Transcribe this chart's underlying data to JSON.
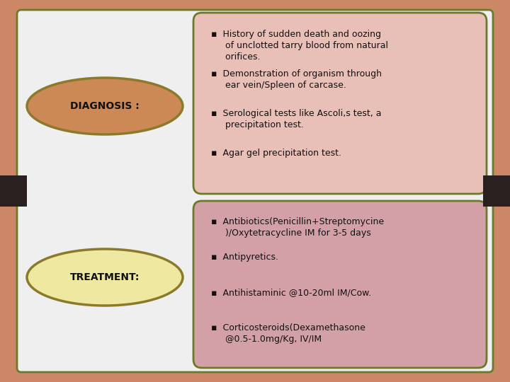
{
  "background_color": "#CC8866",
  "main_bg": "#EFEFEF",
  "panel_border_color": "#6B7A2A",
  "diagnosis_box_bg": "#E8C0B8",
  "treatment_box_bg": "#D4A0A8",
  "diagnosis_ellipse_bg": "#CC8855",
  "treatment_ellipse_bg": "#EEE8A0",
  "diagnosis_ellipse_border": "#8B7A2A",
  "treatment_ellipse_border": "#8B7A2A",
  "separator_color": "#2A2020",
  "diagnosis_label": "DIAGNOSIS :",
  "treatment_label": "TREATMENT:",
  "diagnosis_bullets": [
    "▪  History of sudden death and oozing\n     of unclotted tarry blood from natural\n     orifices.",
    "▪  Demonstration of organism through\n     ear vein/Spleen of carcase.",
    "▪  Serological tests like Ascoli,s test, a\n     precipitation test.",
    "▪  Agar gel precipitation test."
  ],
  "treatment_bullets": [
    "▪  Antibiotics(Penicillin+Streptomycine\n     )/Oxytetracycline IM for 3-5 days",
    "▪  Antipyretics.",
    "▪  Antihistaminic @10-20ml IM/Cow.",
    "▪  Corticosteroids(Dexamethasone\n     @0.5-1.0mg/Kg, IV/IM"
  ],
  "label_fontsize": 10,
  "bullet_fontsize": 9
}
